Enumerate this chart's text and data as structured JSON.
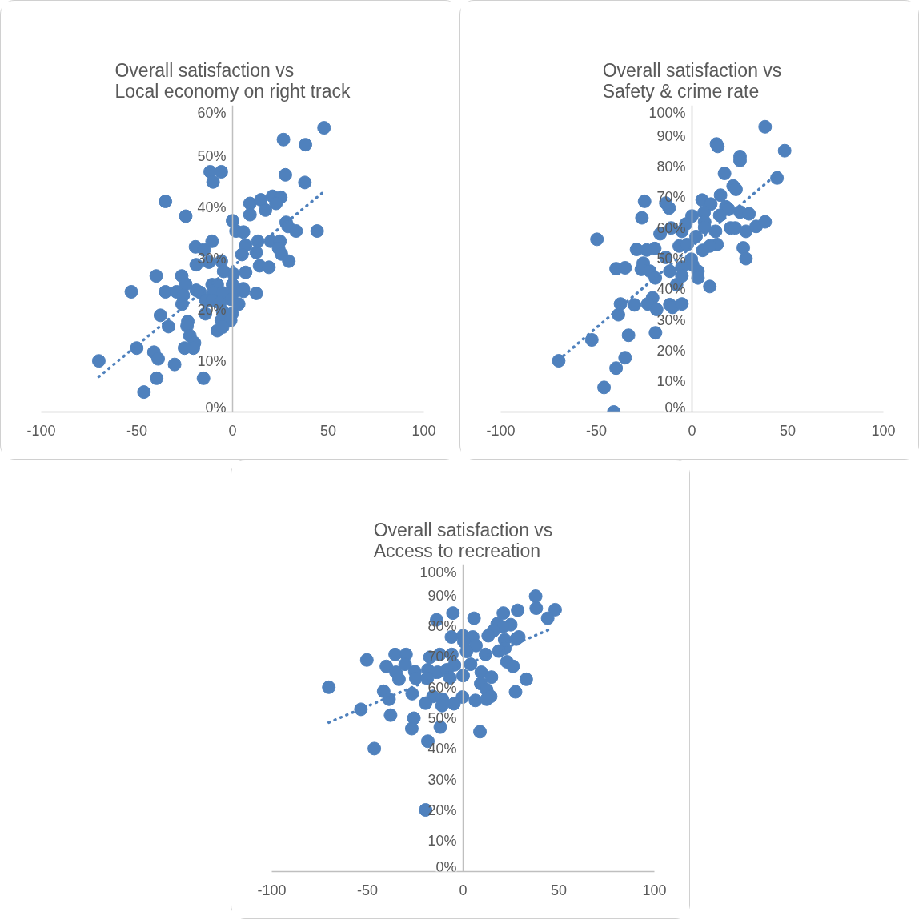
{
  "chart_data": [
    {
      "type": "scatter",
      "title": "Overall satisfaction vs\nLocal economy on right track",
      "grid": false,
      "xlim": [
        -100,
        100
      ],
      "ylim": [
        0,
        60
      ],
      "xticks": [
        -100,
        -50,
        0,
        50,
        100
      ],
      "yticks": [
        {
          "value": 0,
          "label": "0%"
        },
        {
          "value": 10,
          "label": "10%"
        },
        {
          "value": 20,
          "label": "20%"
        },
        {
          "value": 30,
          "label": "30%"
        },
        {
          "value": 40,
          "label": "40%"
        },
        {
          "value": 50,
          "label": "50%"
        },
        {
          "value": 60,
          "label": "60%"
        }
      ],
      "series": [
        {
          "type": "scatter",
          "marker": "circle",
          "color": "#4f81bd",
          "x": [
            47.8,
            26.6,
            38.1,
            -11.7,
            -5.9,
            -10.2,
            27.6,
            37.8,
            -35.1,
            -24.5,
            9.1,
            14.8,
            20.9,
            25.2,
            22.7,
            17.2,
            9.1,
            0,
            28.0,
            29.0,
            33.2,
            44.2,
            1.8,
            5.7,
            -10.7,
            -19.4,
            -14.9,
            6.8,
            13.2,
            19.9,
            24.8,
            24.1,
            25.5,
            4.9,
            12.4,
            29.4,
            -19.0,
            -12.4,
            -5.9,
            -4.7,
            0.4,
            6.8,
            14.1,
            19.0,
            -39.9,
            -26.6,
            -24.5,
            -52.9,
            -35.1,
            -29.3,
            -25.8,
            -19.0,
            -17.0,
            -10.7,
            -8.0,
            -10.0,
            -5.2,
            0,
            0.4,
            5.6,
            5.7,
            12.4,
            -26.4,
            -14.0,
            -10.7,
            -6.6,
            -0.6,
            3.2,
            -37.7,
            -14.2,
            -5.2,
            -0.3,
            -33.5,
            -23.4,
            -23.8,
            -5.9,
            -1.0,
            -8.0,
            -5.2,
            -22.3,
            -19.9,
            -20.5,
            -25.1,
            -50.1,
            -41.1,
            -38.9,
            -69.9,
            -30.3,
            -39.7,
            -15.2,
            -46.3
          ],
          "values": [
            55.6,
            53.3,
            52.3,
            47.0,
            47.0,
            45.0,
            46.4,
            44.9,
            41.2,
            38.3,
            40.8,
            41.5,
            42.2,
            42.0,
            40.8,
            39.5,
            38.6,
            37.4,
            37.1,
            36.3,
            35.4,
            35.4,
            35.4,
            35.2,
            33.4,
            32.3,
            31.7,
            32.6,
            33.4,
            33.4,
            33.4,
            32.0,
            30.9,
            30.8,
            31.2,
            29.5,
            28.8,
            29.3,
            29.5,
            27.5,
            27.0,
            27.3,
            28.6,
            28.3,
            26.6,
            26.6,
            25.0,
            23.5,
            23.5,
            23.5,
            22.8,
            23.8,
            23.4,
            24.9,
            24.9,
            23.3,
            23.3,
            24.9,
            23.3,
            24.1,
            23.6,
            23.2,
            21.1,
            21.8,
            21.8,
            21.3,
            22.0,
            21.1,
            18.9,
            19.2,
            19.7,
            19.2,
            16.7,
            17.7,
            16.8,
            17.9,
            17.9,
            15.9,
            16.6,
            14.9,
            13.5,
            12.5,
            12.5,
            12.5,
            11.7,
            10.4,
            10.0,
            9.3,
            6.6,
            6.6,
            3.9
          ]
        },
        {
          "type": "line",
          "marker": "none",
          "color": "#4f81bd",
          "line_style": "dotted",
          "x": [
            -69.9,
            46.7
          ],
          "values": [
            6.9,
            42.8
          ]
        }
      ]
    },
    {
      "type": "scatter",
      "title": "Overall satisfaction vs\nSafety & crime rate",
      "grid": false,
      "xlim": [
        -100,
        100
      ],
      "ylim": [
        0,
        100
      ],
      "xticks": [
        -100,
        -50,
        0,
        50,
        100
      ],
      "yticks": [
        {
          "value": 0,
          "label": "0%"
        },
        {
          "value": 10,
          "label": "10%"
        },
        {
          "value": 20,
          "label": "20%"
        },
        {
          "value": 30,
          "label": "30%"
        },
        {
          "value": 40,
          "label": "40%"
        },
        {
          "value": 50,
          "label": "50%"
        },
        {
          "value": 60,
          "label": "60%"
        },
        {
          "value": 70,
          "label": "70%"
        },
        {
          "value": 80,
          "label": "80%"
        },
        {
          "value": 90,
          "label": "90%"
        },
        {
          "value": 100,
          "label": "100%"
        }
      ],
      "series": [
        {
          "type": "scatter",
          "marker": "circle",
          "color": "#4f81bd",
          "x": [
            38.2,
            12.8,
            13.5,
            48.4,
            25.1,
            25.1,
            17.0,
            44.4,
            21.5,
            23.0,
            14.9,
            5.3,
            9.8,
            -24.8,
            -12.0,
            -13.7,
            -26.2,
            0,
            6.3,
            17.7,
            19.1,
            14.5,
            25.1,
            29.8,
            -3.2,
            6.6,
            6.6,
            20.1,
            22.6,
            28.2,
            33.5,
            38.2,
            12.3,
            -10.9,
            -16.7,
            -5.3,
            2.1,
            26.8,
            28.2,
            -49.7,
            13.1,
            9.3,
            5.6,
            -6.7,
            -29.0,
            -23.7,
            -19.5,
            -13.7,
            -0.4,
            -2.5,
            0.3,
            -25.5,
            -39.7,
            -35.0,
            -26.5,
            -22.0,
            -19.2,
            -11.6,
            -5.3,
            3.1,
            3.1,
            -5.3,
            -8.1,
            9.3,
            -20.6,
            -37.4,
            -30.1,
            -23.2,
            -11.6,
            -10.2,
            -5.3,
            -18.5,
            -38.5,
            -52.4,
            -33.2,
            -19.1,
            -69.7,
            -35.0,
            -39.7,
            -46.0,
            -40.9
          ],
          "values": [
            93.0,
            87.4,
            86.6,
            85.2,
            83.3,
            82.0,
            77.8,
            76.3,
            73.7,
            72.6,
            70.7,
            69.1,
            67.8,
            68.7,
            66.5,
            68.1,
            63.3,
            63.9,
            65.0,
            66.9,
            66.1,
            64.1,
            65.2,
            64.6,
            61.3,
            62.0,
            60.2,
            60.0,
            60.0,
            58.9,
            60.5,
            62.0,
            58.9,
            60.0,
            58.1,
            58.9,
            57.2,
            53.5,
            50.0,
            56.3,
            54.6,
            54.1,
            52.7,
            54.1,
            53.0,
            52.8,
            53.3,
            50.4,
            49.8,
            54.6,
            48.0,
            48.5,
            46.7,
            47.0,
            46.5,
            45.9,
            43.7,
            45.9,
            47.2,
            45.9,
            43.7,
            44.3,
            41.5,
            40.9,
            37.2,
            35.2,
            34.9,
            35.2,
            35.0,
            34.1,
            35.2,
            33.4,
            31.7,
            23.5,
            25.0,
            25.8,
            16.7,
            17.7,
            14.3,
            8.0,
            0
          ]
        },
        {
          "type": "line",
          "marker": "none",
          "color": "#4f81bd",
          "line_style": "dotted",
          "x": [
            -69.7,
            46.6
          ],
          "values": [
            17.0,
            78.8
          ]
        }
      ]
    },
    {
      "type": "scatter",
      "title": "Overall satisfaction vs\nAccess to recreation",
      "grid": false,
      "xlim": [
        -100,
        100
      ],
      "ylim": [
        0,
        100
      ],
      "xticks": [
        -100,
        -50,
        0,
        50,
        100
      ],
      "yticks": [
        {
          "value": 0,
          "label": "0%"
        },
        {
          "value": 10,
          "label": "10%"
        },
        {
          "value": 20,
          "label": "20%"
        },
        {
          "value": 30,
          "label": "30%"
        },
        {
          "value": 40,
          "label": "40%"
        },
        {
          "value": 50,
          "label": "50%"
        },
        {
          "value": 60,
          "label": "60%"
        },
        {
          "value": 70,
          "label": "70%"
        },
        {
          "value": 80,
          "label": "80%"
        },
        {
          "value": 90,
          "label": "90%"
        },
        {
          "value": 100,
          "label": "100%"
        }
      ],
      "series": [
        {
          "type": "scatter",
          "marker": "circle",
          "color": "#4f81bd",
          "x": [
            37.9,
            38.2,
            48.1,
            44.2,
            28.5,
            21.0,
            -5.3,
            -13.8,
            5.7,
            17.8,
            24.9,
            20.7,
            15.8,
            13.1,
            -6.1,
            0,
            5.0,
            29.1,
            21.7,
            27.7,
            0.4,
            6.7,
            21.8,
            18.6,
            1.8,
            11.7,
            -35.5,
            -29.8,
            -12.2,
            -5.9,
            -17.3,
            -50.3,
            -40.1,
            -30.3,
            22.9,
            26.1,
            3.9,
            -4.5,
            -35.1,
            -25.2,
            -18.4,
            -13.3,
            -8.4,
            9.5,
            0,
            14.8,
            -33.5,
            -24.7,
            -18.7,
            -6.8,
            33.0,
            9.2,
            -70.2,
            -41.5,
            12.3,
            27.4,
            -38.7,
            -26.6,
            -15.7,
            -10.8,
            -0.3,
            14.4,
            -19.6,
            -11.0,
            -4.8,
            6.4,
            12.3,
            -53.4,
            -37.9,
            -25.7,
            -26.8,
            -11.9,
            8.8,
            -18.4,
            -46.4,
            -19.6
          ],
          "values": [
            89.8,
            85.9,
            85.4,
            82.6,
            85.2,
            84.3,
            84.3,
            82.1,
            82.6,
            80.8,
            80.5,
            79.8,
            78.5,
            76.9,
            76.5,
            76.9,
            76.5,
            76.5,
            75.6,
            75.8,
            75.0,
            73.7,
            72.8,
            71.9,
            71.8,
            70.8,
            70.8,
            70.8,
            70.8,
            70.8,
            69.9,
            69.0,
            66.9,
            67.6,
            68.4,
            66.9,
            67.6,
            67.4,
            65.0,
            65.2,
            65.8,
            65.0,
            65.8,
            65.0,
            63.9,
            63.4,
            62.7,
            63.0,
            63.0,
            63.2,
            62.7,
            61.3,
            60.1,
            58.8,
            59.3,
            58.6,
            56.2,
            58.0,
            57.1,
            56.2,
            56.9,
            57.1,
            54.9,
            54.1,
            54.7,
            55.8,
            56.2,
            52.9,
            51.0,
            50.0,
            46.6,
            47.1,
            45.6,
            42.5,
            40.1,
            20.1
          ]
        },
        {
          "type": "line",
          "marker": "none",
          "color": "#4f81bd",
          "line_style": "dotted",
          "x": [
            -70.2,
            46.1
          ],
          "values": [
            48.6,
            79.2
          ]
        }
      ]
    }
  ]
}
